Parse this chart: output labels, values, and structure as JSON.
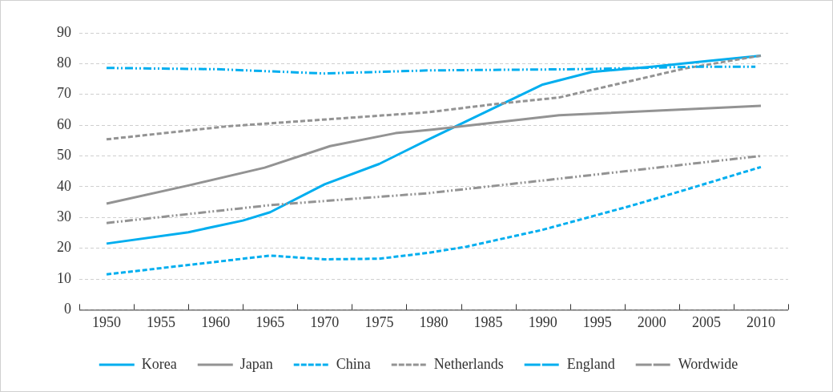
{
  "chart_data": {
    "type": "line",
    "xlim": [
      1947.5,
      2012.5
    ],
    "xticks": [
      1950,
      1955,
      1960,
      1965,
      1970,
      1975,
      1980,
      1985,
      1990,
      1995,
      2000,
      2005,
      2010
    ],
    "ylim": [
      0,
      90
    ],
    "yticks": [
      0,
      10,
      20,
      30,
      40,
      50,
      60,
      70,
      80,
      90
    ],
    "grid": "y",
    "legend": "bottom",
    "marker": "none",
    "series": [
      {
        "name": "Korea",
        "color": "#00aeef",
        "line_style": "solid",
        "x": [
          1950,
          1957.5,
          1962.5,
          1965,
          1970,
          1975,
          1979.5,
          1990,
          1994.5,
          2000,
          2005,
          2010
        ],
        "values": [
          21.5,
          25.2,
          29,
          31.7,
          40.8,
          47.4,
          55.3,
          73.2,
          77.3,
          79,
          80.8,
          82.6
        ]
      },
      {
        "name": "Japan",
        "color": "#939393",
        "line_style": "solid",
        "x": [
          1950,
          1957.5,
          1964.5,
          1970.5,
          1976.5,
          1980,
          1991.5,
          2010
        ],
        "values": [
          34.5,
          40.4,
          46.2,
          53.2,
          57.4,
          58.6,
          63.2,
          66.3
        ]
      },
      {
        "name": "China",
        "color": "#00aeef",
        "line_style": "dashed",
        "x": [
          1950,
          1965,
          1970,
          1975,
          1979.5,
          1983,
          1990,
          1998,
          2003,
          2010
        ],
        "values": [
          11.5,
          17.6,
          16.4,
          16.6,
          18.5,
          20.5,
          26,
          33.7,
          38.9,
          46.4
        ]
      },
      {
        "name": "Netherlands",
        "color": "#939393",
        "line_style": "dashed",
        "x": [
          1950,
          1961,
          1979.5,
          1985.5,
          1991.5,
          2003,
          2010
        ],
        "values": [
          55.4,
          59.6,
          64.2,
          66.8,
          69,
          78.4,
          82.6
        ]
      },
      {
        "name": "England",
        "color": "#00aeef",
        "line_style": "dashdot",
        "x": [
          1950,
          1960,
          1970,
          1979.5,
          1993.5,
          2004,
          2009.5
        ],
        "values": [
          78.6,
          78.2,
          76.8,
          77.8,
          78.2,
          79,
          79
        ]
      },
      {
        "name": "Wordwide",
        "color": "#939393",
        "line_style": "dashdot",
        "x": [
          1950,
          1965,
          1979.5,
          1991.5,
          2010
        ],
        "values": [
          28.2,
          34,
          37.9,
          42.6,
          50
        ]
      }
    ]
  }
}
